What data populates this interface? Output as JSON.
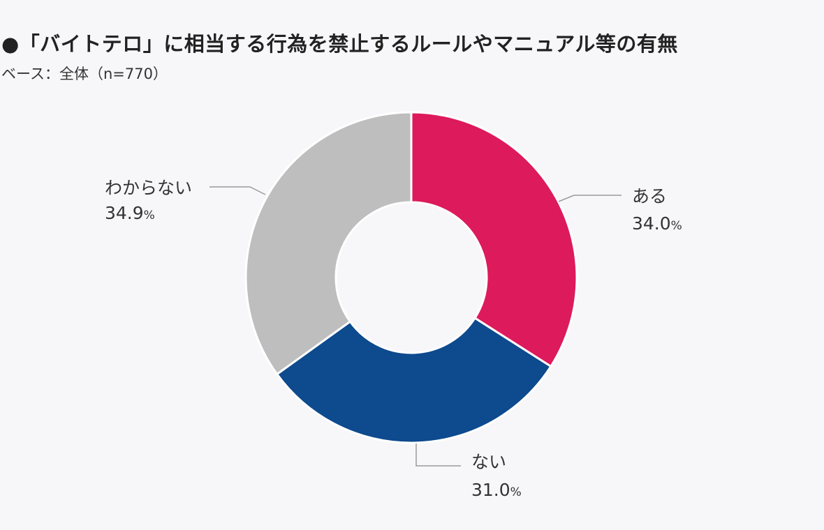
{
  "chart_data": {
    "type": "pie",
    "title": "●「バイトテロ」に相当する行為を禁止するルールやマニュアル等の有無",
    "subtitle": "ベース：全体（n=770）",
    "value_suffix": "%",
    "hole": "donut",
    "direction": "clockwise from top",
    "slices": [
      {
        "label": "ある",
        "value": 34.0,
        "display": "34.0",
        "color": "#dd1a5b"
      },
      {
        "label": "ない",
        "value": 31.0,
        "display": "31.0",
        "color": "#0d4a8e"
      },
      {
        "label": "わからない",
        "value": 34.9,
        "display": "34.9",
        "color": "#bfbebf"
      }
    ]
  }
}
